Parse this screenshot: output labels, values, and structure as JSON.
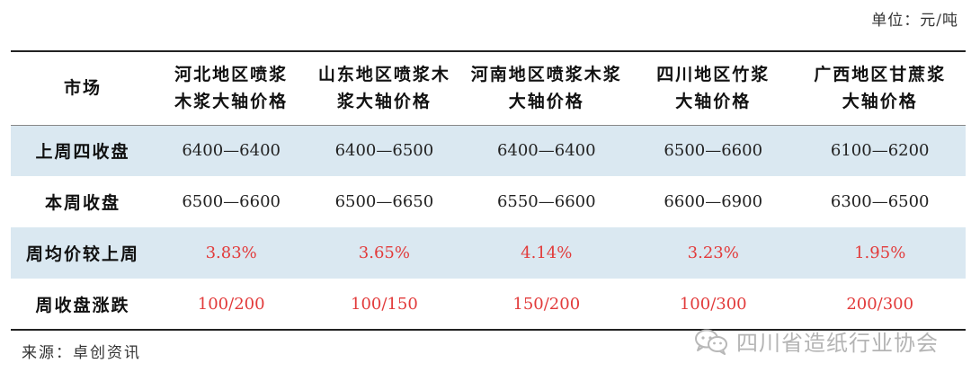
{
  "unit_note": "单位：元/吨",
  "table": {
    "headers": [
      "市场",
      "河北地区喷浆木浆大轴价格",
      "山东地区喷浆木浆大轴价格",
      "河南地区喷浆木浆大轴价格",
      "四川地区竹浆大轴价格",
      "广西地区甘蔗浆大轴价格"
    ],
    "header_lines": [
      [
        "市场"
      ],
      [
        "河北地区喷浆",
        "木浆大轴价格"
      ],
      [
        "山东地区喷浆木",
        "浆大轴价格"
      ],
      [
        "河南地区喷浆木浆",
        "大轴价格"
      ],
      [
        "四川地区竹浆",
        "大轴价格"
      ],
      [
        "广西地区甘蔗浆",
        "大轴价格"
      ]
    ],
    "rows": [
      {
        "label": "上周四收盘",
        "values": [
          "6400—6400",
          "6400—6500",
          "6400—6400",
          "6500—6600",
          "6100—6200"
        ]
      },
      {
        "label": "本周收盘",
        "values": [
          "6500—6600",
          "6500—6650",
          "6550—6600",
          "6600—6900",
          "6300—6500"
        ]
      },
      {
        "label": "周均价较上周",
        "values": [
          "3.83%",
          "3.65%",
          "4.14%",
          "3.23%",
          "1.95%"
        ]
      },
      {
        "label": "周收盘涨跌",
        "values": [
          "100/200",
          "100/150",
          "150/200",
          "100/300",
          "200/300"
        ]
      }
    ]
  },
  "source_note": "来源：卓创资讯",
  "watermark": {
    "icon": "wechat-icon",
    "text": "四川省造纸行业协会"
  },
  "colors": {
    "shaded_row": "#dae8f1",
    "highlight_text": "#e23b3b"
  }
}
